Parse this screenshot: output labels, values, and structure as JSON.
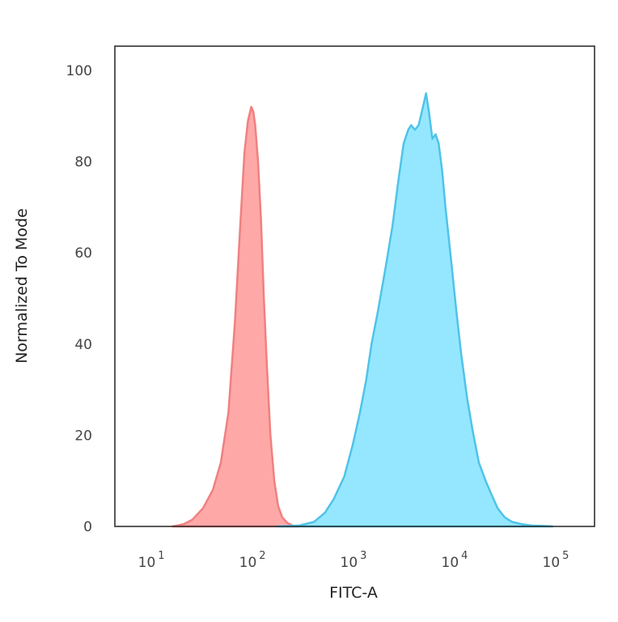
{
  "chart_data": {
    "type": "area",
    "title": "",
    "xlabel": "FITC-A",
    "ylabel": "Normalized To Mode",
    "xscale": "log",
    "xlim": [
      1.8,
      100000
    ],
    "ylim": [
      0,
      100
    ],
    "grid": false,
    "legend": "none",
    "x_ticks": [
      {
        "value": 10,
        "base": "10",
        "exp": "1"
      },
      {
        "value": 100,
        "base": "10",
        "exp": "2"
      },
      {
        "value": 1000,
        "base": "10",
        "exp": "3"
      },
      {
        "value": 10000,
        "base": "10",
        "exp": "4"
      },
      {
        "value": 100000,
        "base": "10",
        "exp": "5"
      }
    ],
    "y_ticks": [
      "0",
      "20",
      "40",
      "60",
      "80",
      "100"
    ],
    "series": [
      {
        "color": "#f08080",
        "fill": "#ffa3a3",
        "x": [
          14,
          18,
          22,
          28,
          35,
          42,
          50,
          58,
          65,
          72,
          78,
          84,
          88,
          92,
          98,
          105,
          112,
          120,
          130,
          142,
          155,
          170,
          190,
          215,
          245
        ],
        "y": [
          0,
          0.5,
          1.5,
          4,
          8,
          14,
          25,
          45,
          65,
          82,
          89,
          92,
          91,
          88,
          80,
          67,
          50,
          35,
          20,
          10,
          4.5,
          2,
          0.8,
          0.2,
          0
        ]
      },
      {
        "color": "#4fc3e8",
        "fill": "#8fe6ff",
        "x": [
          150,
          250,
          350,
          450,
          550,
          700,
          850,
          1000,
          1150,
          1300,
          1500,
          1800,
          2100,
          2400,
          2700,
          3000,
          3200,
          3500,
          3800,
          4200,
          4500,
          4800,
          5200,
          5600,
          6000,
          6500,
          7000,
          8000,
          9000,
          10000,
          11500,
          13000,
          15000,
          17500,
          20000,
          23000,
          27000,
          32000,
          40000,
          50000,
          65000,
          80000
        ],
        "y": [
          0,
          0.2,
          1,
          3,
          6,
          11,
          18,
          25,
          32,
          40,
          47,
          57,
          66,
          76,
          84,
          87,
          88,
          87,
          88,
          92,
          95,
          91,
          85,
          86,
          84,
          78,
          70,
          58,
          47,
          38,
          28,
          21,
          14,
          10,
          7,
          4,
          2,
          1,
          0.5,
          0.2,
          0.1,
          0
        ]
      }
    ]
  }
}
